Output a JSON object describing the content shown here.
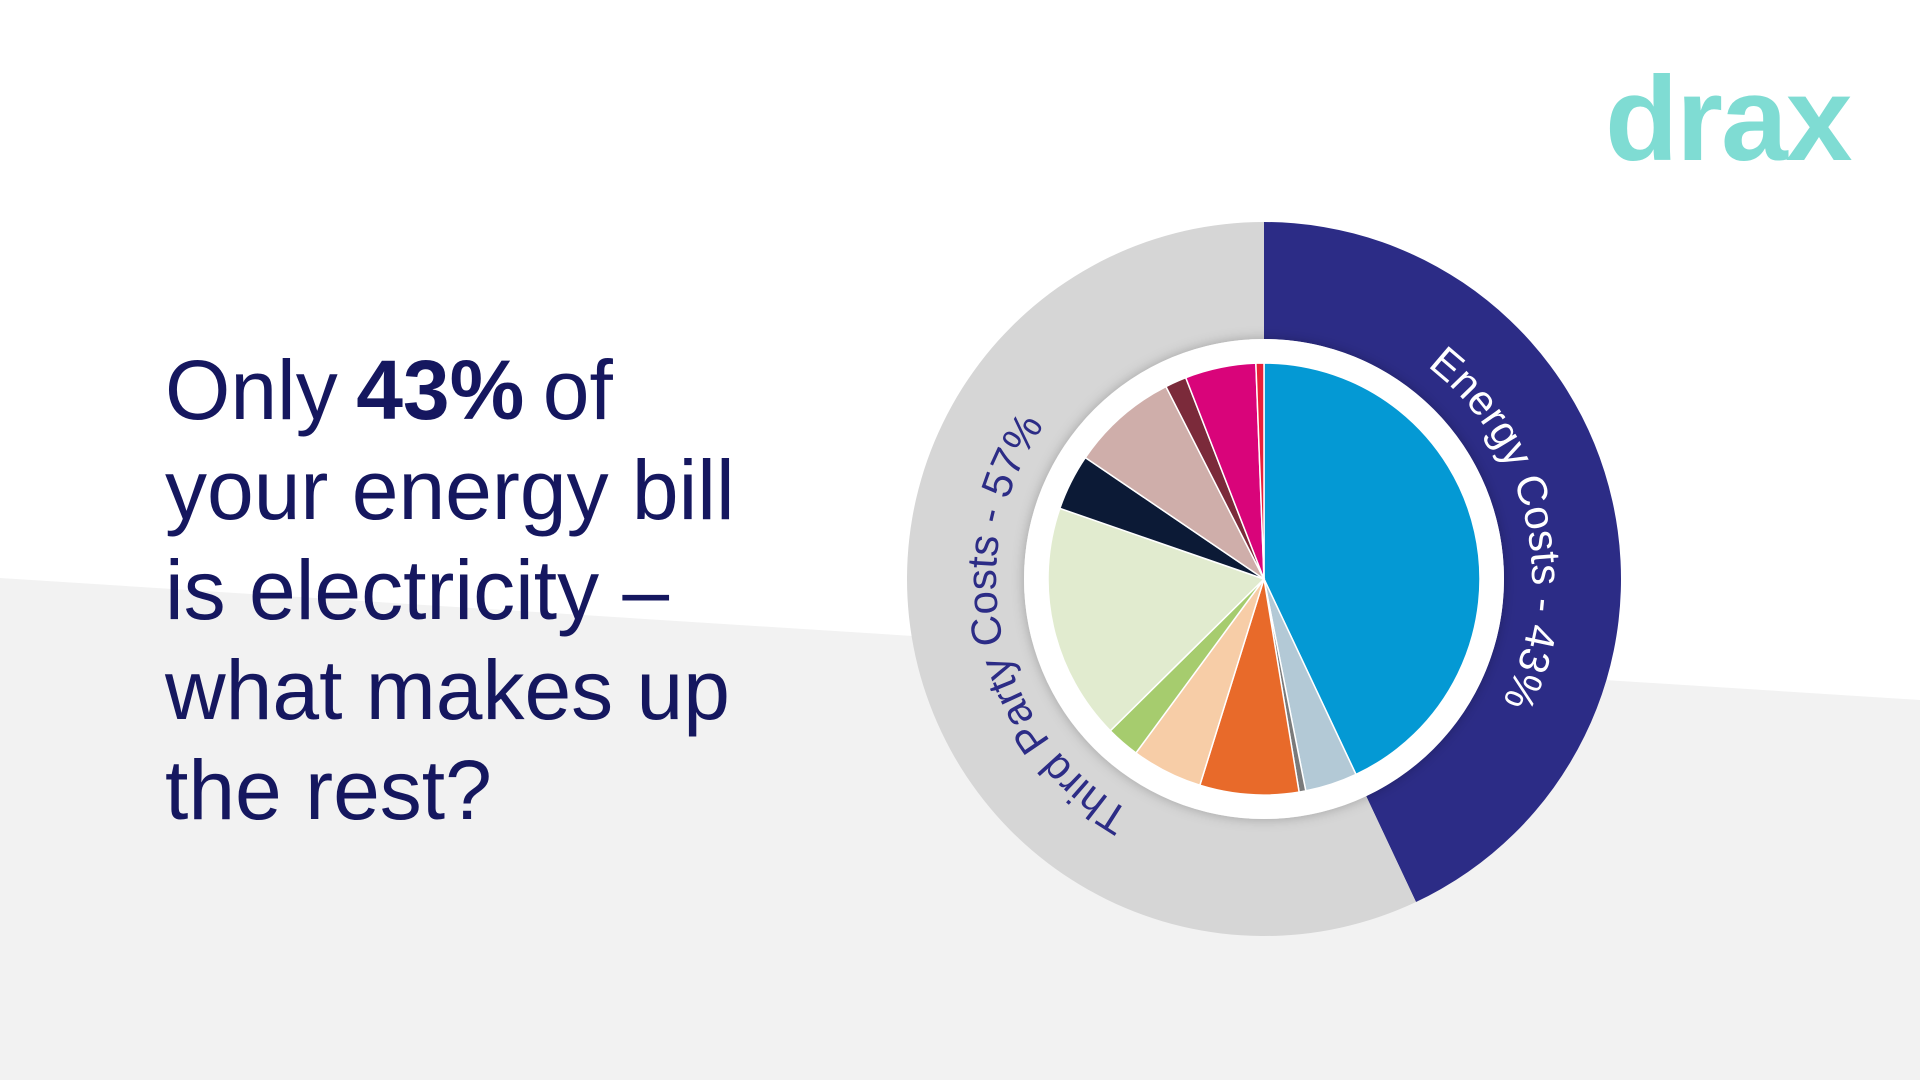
{
  "logo": "drax",
  "headline": {
    "lines": [
      [
        "Only",
        "43%",
        "of"
      ],
      [
        "your energy bill"
      ],
      [
        "is electricity –"
      ],
      [
        "what makes up"
      ],
      [
        "the rest?"
      ]
    ]
  },
  "chart_data": {
    "type": "donut",
    "rings": [
      {
        "labels": [
          "Energy Costs - 43%",
          "Third Party Costs - 57%"
        ],
        "values": [
          43,
          57
        ],
        "colors": [
          "#2c2c86",
          "#d6d6d6"
        ]
      },
      {
        "values": [
          43,
          3.9,
          0.5,
          7.4,
          5.3,
          2.5,
          17.7,
          4.2,
          8,
          1.6,
          5.3,
          0.6
        ],
        "colors": [
          "#0499d4",
          "#b3c9d6",
          "#7a7a7a",
          "#e86a2a",
          "#f7cda7",
          "#a6cc6e",
          "#e1ebcf",
          "#0c1a36",
          "#cfaeaa",
          "#7b2a3a",
          "#d9047a",
          "#e8203a"
        ]
      }
    ]
  }
}
